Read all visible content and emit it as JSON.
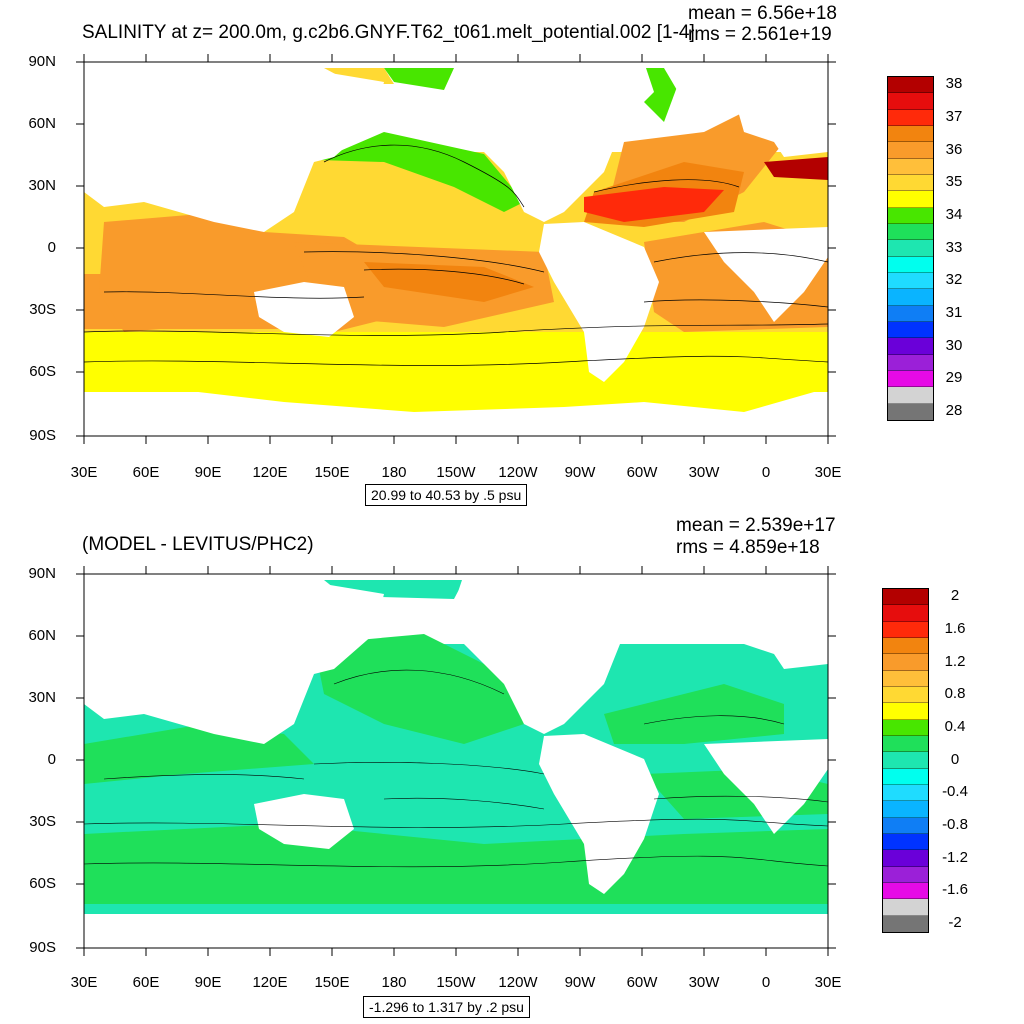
{
  "top": {
    "title": "SALINITY at z= 200.0m, g.c2b6.GNYF.T62_t061.melt_potential.002 [1-4]",
    "mean": "mean = 6.56e+18",
    "rms": "rms = 2.561e+19",
    "range_label": "20.99 to 40.53 by .5 psu",
    "colorbar_labels": [
      "38",
      "37",
      "36",
      "35",
      "34",
      "33",
      "32",
      "31",
      "30",
      "29",
      "28"
    ],
    "colorbar_colors": [
      "#b30000",
      "#e60d0d",
      "#ff2a0a",
      "#f2840f",
      "#f99b2b",
      "#ffbf3a",
      "#ffd933",
      "#ffff00",
      "#48e600",
      "#1fe05a",
      "#1ee6b0",
      "#00ffee",
      "#1fdcff",
      "#0ab4ff",
      "#0f7ef5",
      "#0033ff",
      "#6a00d9",
      "#9b20d8",
      "#e60ae6",
      "#d3d3d3",
      "#757575"
    ]
  },
  "bottom": {
    "title": "(MODEL - LEVITUS/PHC2)",
    "mean": "mean = 2.539e+17",
    "rms": "rms = 4.859e+18",
    "range_label": "-1.296 to 1.317 by .2 psu",
    "colorbar_labels": [
      "2",
      "1.6",
      "1.2",
      "0.8",
      "0.4",
      "0",
      "-0.4",
      "-0.8",
      "-1.2",
      "-1.6",
      "-2"
    ],
    "colorbar_colors": [
      "#b30000",
      "#e60d0d",
      "#ff2a0a",
      "#f2840f",
      "#f99b2b",
      "#ffbf3a",
      "#ffd933",
      "#ffff00",
      "#48e600",
      "#1fe05a",
      "#1ee6b0",
      "#00ffee",
      "#1fdcff",
      "#0ab4ff",
      "#0f7ef5",
      "#0033ff",
      "#6a00d9",
      "#9b20d8",
      "#e60ae6",
      "#d3d3d3",
      "#757575"
    ]
  },
  "lat_labels": [
    "90N",
    "60N",
    "30N",
    "0",
    "30S",
    "60S",
    "90S"
  ],
  "lon_labels": [
    "30E",
    "60E",
    "90E",
    "120E",
    "150E",
    "180",
    "150W",
    "120W",
    "90W",
    "60W",
    "30W",
    "0",
    "30E"
  ]
}
